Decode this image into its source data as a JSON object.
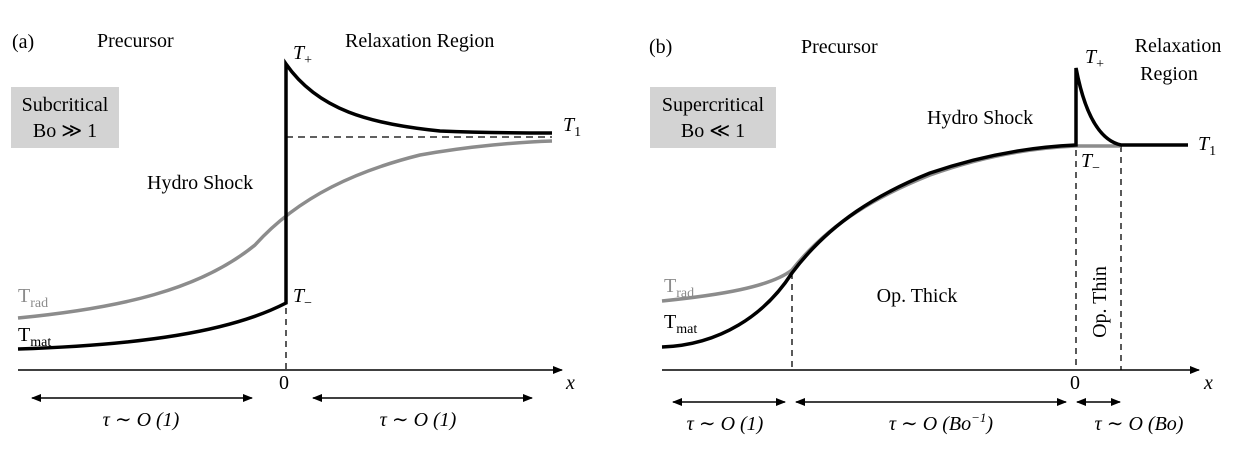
{
  "panel_a": {
    "tag": "(a)",
    "precursor": "Precursor",
    "relaxation": "Relaxation Region",
    "regime_line1": "Subcritical",
    "regime_line2": "Bo ≫ 1",
    "hydro_shock": "Hydro Shock",
    "t_plus": "T",
    "t_plus_sub": "+",
    "t_minus": "T",
    "t_minus_sub": "−",
    "t1": "T",
    "t1_sub": "1",
    "trad": "T",
    "trad_sub": "rad",
    "tmat": "T",
    "tmat_sub": "mat",
    "origin": "0",
    "x_axis": "x",
    "scale_left": "τ ∼ O (1)",
    "scale_right": "τ ∼ O (1)"
  },
  "panel_b": {
    "tag": "(b)",
    "precursor": "Precursor",
    "relaxation_line1": "Relaxation",
    "relaxation_line2": "Region",
    "regime_line1": "Supercritical",
    "regime_line2": "Bo ≪ 1",
    "hydro_shock": "Hydro Shock",
    "t_plus": "T",
    "t_plus_sub": "+",
    "t_minus": "T",
    "t_minus_sub": "−",
    "t1": "T",
    "t1_sub": "1",
    "trad": "T",
    "trad_sub": "rad",
    "tmat": "T",
    "tmat_sub": "mat",
    "op_thick": "Op. Thick",
    "op_thin": "Op. Thin",
    "origin": "0",
    "x_axis": "x",
    "scale_left": "τ ∼ O (1)",
    "scale_mid": "τ ∼ O (Bo",
    "scale_mid_sup": "−1",
    "scale_mid_end": ")",
    "scale_right": "τ ∼ O (Bo)"
  },
  "colors": {
    "mat": "#000000",
    "rad": "#8c8c8c",
    "box": "#d3d3d3"
  }
}
